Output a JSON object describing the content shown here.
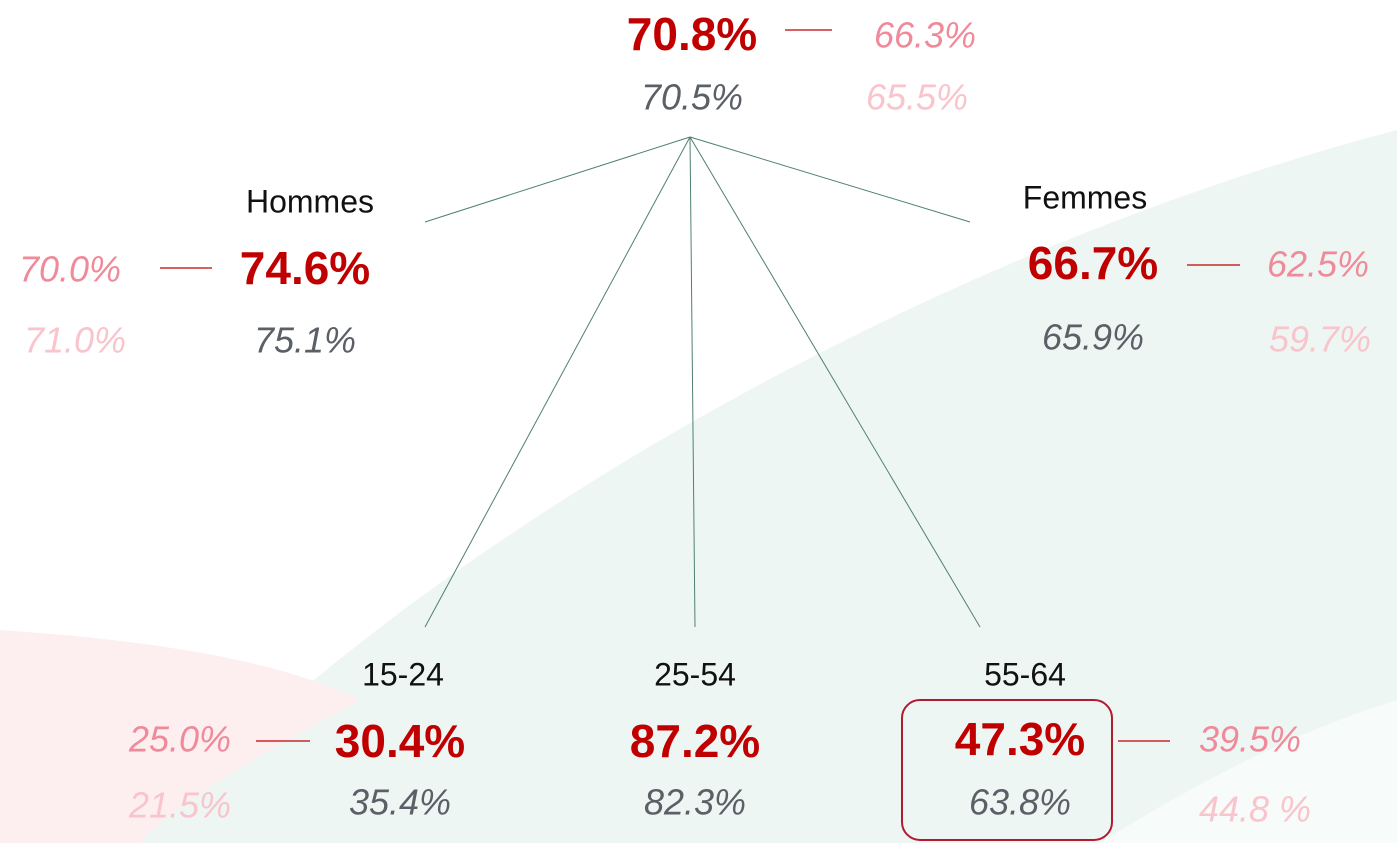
{
  "nodes": [
    {
      "main": "70.8%",
      "sub": "70.5%",
      "side_main": "66.3%",
      "side_sub": "65.5%"
    },
    {
      "label": "Hommes",
      "main": "74.6%",
      "sub": "75.1%",
      "side_main": "70.0%",
      "side_sub": "71.0%"
    },
    {
      "label": "Femmes",
      "main": "66.7%",
      "sub": "65.9%",
      "side_main": "62.5%",
      "side_sub": "59.7%"
    },
    {
      "label": "15-24",
      "main": "30.4%",
      "sub": "35.4%",
      "side_main": "25.0%",
      "side_sub": "21.5%"
    },
    {
      "label": "25-54",
      "main": "87.2%",
      "sub": "82.3%"
    },
    {
      "label": "55-64",
      "main": "47.3%",
      "sub": "63.8%",
      "side_main": "39.5%",
      "side_sub": "44.8 %"
    }
  ]
}
